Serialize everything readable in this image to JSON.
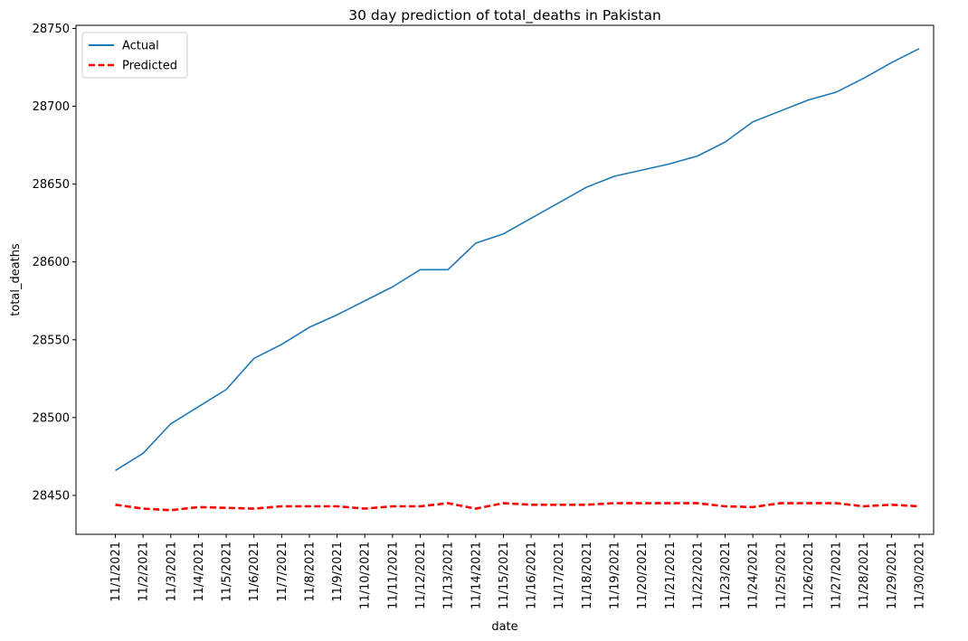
{
  "chart_data": {
    "type": "line",
    "title": "30 day prediction of total_deaths in Pakistan",
    "xlabel": "date",
    "ylabel": "total_deaths",
    "x": [
      "11/1/2021",
      "11/2/2021",
      "11/3/2021",
      "11/4/2021",
      "11/5/2021",
      "11/6/2021",
      "11/7/2021",
      "11/8/2021",
      "11/9/2021",
      "11/10/2021",
      "11/11/2021",
      "11/12/2021",
      "11/13/2021",
      "11/14/2021",
      "11/15/2021",
      "11/16/2021",
      "11/17/2021",
      "11/18/2021",
      "11/19/2021",
      "11/20/2021",
      "11/21/2021",
      "11/22/2021",
      "11/23/2021",
      "11/24/2021",
      "11/25/2021",
      "11/26/2021",
      "11/27/2021",
      "11/28/2021",
      "11/29/2021",
      "11/30/2021"
    ],
    "series": [
      {
        "name": "Actual",
        "color": "#1f77b4",
        "style": "solid",
        "values": [
          28466,
          28477,
          28496,
          28507,
          28518,
          28538,
          28547,
          28558,
          28566,
          28575,
          28584,
          28595,
          28595,
          28612,
          28618,
          28628,
          28638,
          28648,
          28655,
          28659,
          28663,
          28668,
          28677,
          28690,
          28697,
          28704,
          28709,
          28718,
          28728,
          28737
        ]
      },
      {
        "name": "Predicted",
        "color": "#ff0000",
        "style": "dashed",
        "values": [
          28444,
          28441.5,
          28440.5,
          28442.5,
          28442,
          28441.5,
          28443,
          28443,
          28443,
          28441.5,
          28443,
          28443,
          28445,
          28441.5,
          28445,
          28444,
          28444,
          28444,
          28445,
          28445,
          28445,
          28445,
          28443,
          28442.5,
          28445,
          28445,
          28445,
          28443,
          28444,
          28443
        ]
      }
    ],
    "ylim": [
      28425,
      28752
    ],
    "yticks": [
      28450,
      28500,
      28550,
      28600,
      28650,
      28700,
      28750
    ],
    "grid": false,
    "legend_position": "top-left"
  }
}
